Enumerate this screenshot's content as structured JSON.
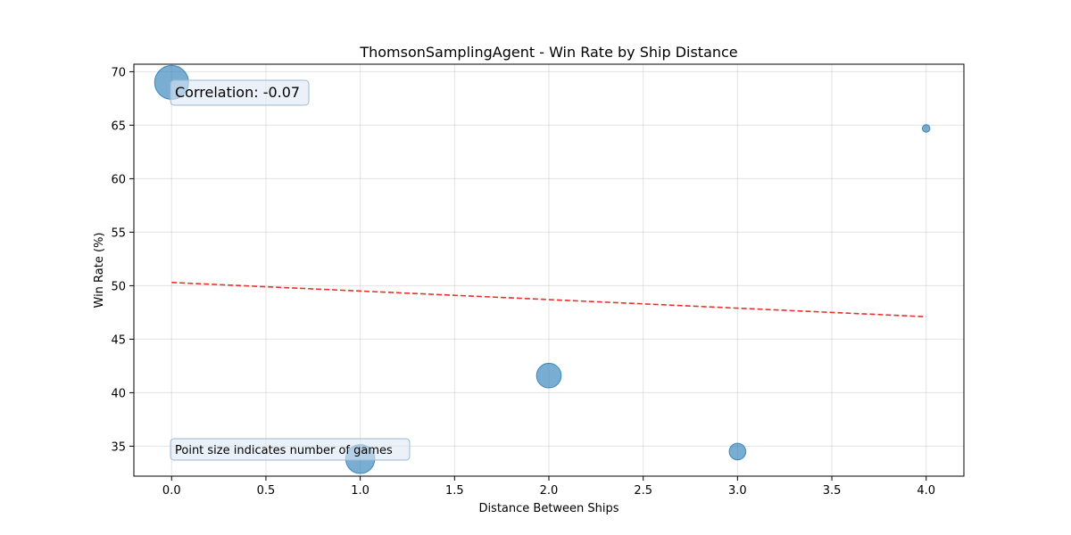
{
  "chart_data": {
    "type": "scatter",
    "title": "ThomsonSamplingAgent - Win Rate by Ship Distance",
    "xlabel": "Distance Between Ships",
    "ylabel": "Win Rate (%)",
    "xlim": [
      -0.2,
      4.2
    ],
    "ylim": [
      32.2,
      70.7
    ],
    "x_ticks": [
      0.0,
      0.5,
      1.0,
      1.5,
      2.0,
      2.5,
      3.0,
      3.5,
      4.0
    ],
    "x_tick_labels": [
      "0.0",
      "0.5",
      "1.0",
      "1.5",
      "2.0",
      "2.5",
      "3.0",
      "3.5",
      "4.0"
    ],
    "y_ticks": [
      35,
      40,
      45,
      50,
      55,
      60,
      65,
      70
    ],
    "y_tick_labels": [
      "35",
      "40",
      "45",
      "50",
      "55",
      "60",
      "65",
      "70"
    ],
    "grid": true,
    "points": [
      {
        "x": 0,
        "y": 69.0,
        "games": 100
      },
      {
        "x": 1,
        "y": 33.8,
        "games": 73
      },
      {
        "x": 2,
        "y": 41.6,
        "games": 53
      },
      {
        "x": 3,
        "y": 34.5,
        "games": 24
      },
      {
        "x": 4,
        "y": 64.7,
        "games": 5
      }
    ],
    "trendline": {
      "x": [
        0,
        4
      ],
      "y": [
        50.3,
        47.1
      ],
      "style": "dashed",
      "color": "#e8322d"
    },
    "point_color": "#1f77b4",
    "annotations": {
      "correlation": "Correlation: -0.07",
      "size_note": "Point size indicates number of games"
    }
  }
}
